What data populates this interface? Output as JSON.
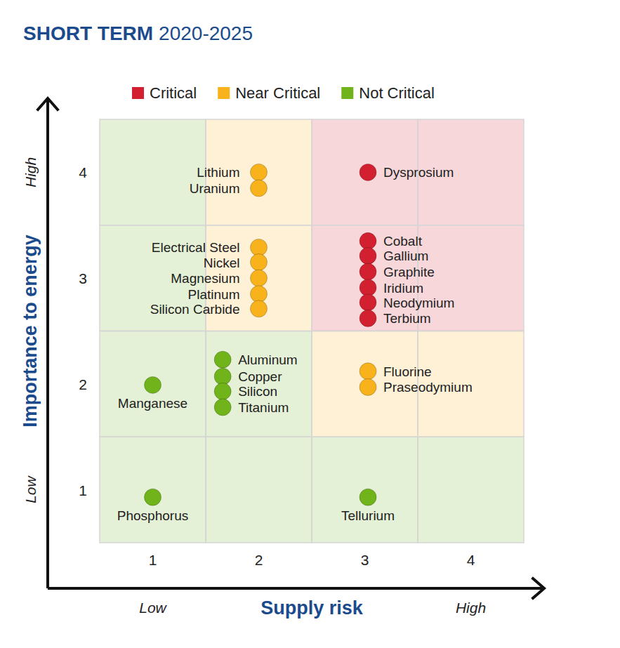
{
  "chart_data": {
    "type": "scatter",
    "title": "SHORT TERM",
    "subtitle": "2020-2025",
    "xlabel": "Supply risk",
    "ylabel": "Importance to energy",
    "annotations": {
      "x_low": "Low",
      "x_high": "High",
      "y_low": "Low",
      "y_high": "High"
    },
    "xlim": [
      0.5,
      4.5
    ],
    "ylim": [
      0.5,
      4.5
    ],
    "xticks": [
      1,
      2,
      3,
      4
    ],
    "yticks": [
      1,
      2,
      3,
      4
    ],
    "grid": false,
    "legend": "top",
    "marker": "circle",
    "cells": [
      [
        "Not Critical",
        "Not Critical",
        "Not Critical",
        "Not Critical"
      ],
      [
        "Not Critical",
        "Not Critical",
        "Near Critical",
        "Near Critical"
      ],
      [
        "Not Critical",
        "Near Critical",
        "Critical",
        "Critical"
      ],
      [
        "Not Critical",
        "Near Critical",
        "Critical",
        "Critical"
      ]
    ],
    "series": [
      {
        "name": "Critical",
        "color": "#d32030",
        "x": [
          3.03,
          3.03,
          3.03,
          3.03,
          3.03,
          3.03,
          3.03
        ],
        "values": [
          4.0,
          3.35,
          3.21,
          3.06,
          2.91,
          2.77,
          2.62
        ],
        "labels": [
          "Dysprosium",
          "Cobalt",
          "Gallium",
          "Graphite",
          "Iridium",
          "Neodymium",
          "Terbium"
        ]
      },
      {
        "name": "Near Critical",
        "color": "#f8b21c",
        "x": [
          2,
          2,
          2,
          2,
          2,
          2,
          2,
          3.03,
          3.03
        ],
        "values": [
          4.0,
          3.85,
          3.29,
          3.15,
          3.0,
          2.85,
          2.71,
          2.12,
          1.97
        ],
        "labels": [
          "Lithium",
          "Uranium",
          "Electrical Steel",
          "Nickel",
          "Magnesium",
          "Platinum",
          "Silicon Carbide",
          "Fluorine",
          "Praseodymium"
        ]
      },
      {
        "name": "Not Critical",
        "color": "#71b31a",
        "x": [
          1,
          1.66,
          1.66,
          1.66,
          1.66,
          1,
          3.03
        ],
        "values": [
          1.99,
          2.23,
          2.07,
          1.93,
          1.78,
          0.93,
          0.93
        ],
        "labels": [
          "Manganese",
          "Aluminum",
          "Copper",
          "Silicon",
          "Titanium",
          "Phosphorus",
          "Tellurium"
        ]
      }
    ]
  }
}
